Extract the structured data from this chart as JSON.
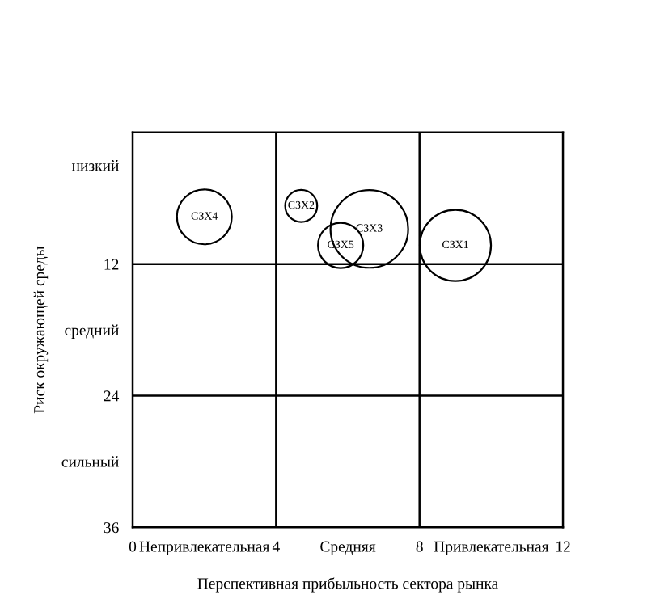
{
  "chart_data": {
    "type": "bubble",
    "xlabel": "Перспективная прибыльность сектора рынка",
    "ylabel": "Риск окружающей среды",
    "xlim": [
      0,
      12
    ],
    "ylim": [
      36,
      0
    ],
    "xticks": [
      0,
      {
        "value": 2,
        "label": "Непривлекательная"
      },
      4,
      {
        "value": 6,
        "label": "Средняя"
      },
      8,
      {
        "value": 10,
        "label": "Привлекательная"
      },
      12
    ],
    "yticks": [
      {
        "value": 3,
        "label": "низкий"
      },
      12,
      {
        "value": 18,
        "label": "средний"
      },
      24,
      {
        "value": 30,
        "label": "сильный"
      },
      36
    ],
    "ref_lines": [
      {
        "axis": "x",
        "value": 4,
        "color": "#000000"
      },
      {
        "axis": "x",
        "value": 8,
        "color": "#000000"
      },
      {
        "axis": "y",
        "value": 12,
        "color": "#000000"
      },
      {
        "axis": "y",
        "value": 24,
        "color": "#000000"
      }
    ],
    "series": [
      {
        "name": "СЗХ1",
        "color": "#000000",
        "x": [
          9.0
        ],
        "values": [
          10.3
        ],
        "sizes": [
          0.84
        ]
      },
      {
        "name": "СЗХ2",
        "color": "#000000",
        "x": [
          4.7
        ],
        "values": [
          6.7
        ],
        "sizes": [
          0.17
        ]
      },
      {
        "name": "СЗХ3",
        "color": "#000000",
        "x": [
          6.6
        ],
        "values": [
          8.8
        ],
        "sizes": [
          1
        ]
      },
      {
        "name": "СЗХ4",
        "color": "#000000",
        "x": [
          2.0
        ],
        "values": [
          7.7
        ],
        "sizes": [
          0.5
        ]
      },
      {
        "name": "СЗХ5",
        "color": "#000000",
        "x": [
          5.8
        ],
        "values": [
          10.3
        ],
        "sizes": [
          0.34
        ]
      }
    ],
    "legend": false,
    "grid": false
  }
}
